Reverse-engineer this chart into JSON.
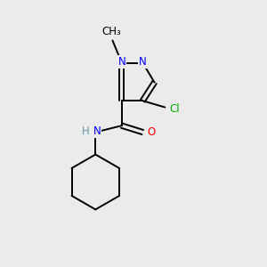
{
  "background_color": "#ebebeb",
  "bond_color": "#000000",
  "atom_colors": {
    "N": "#0000ff",
    "O": "#ff0000",
    "Cl": "#00aa00",
    "C": "#000000",
    "H": "#6699aa"
  },
  "font_size": 8.5,
  "figsize": [
    3.0,
    3.0
  ],
  "dpi": 100,
  "lw": 1.4
}
